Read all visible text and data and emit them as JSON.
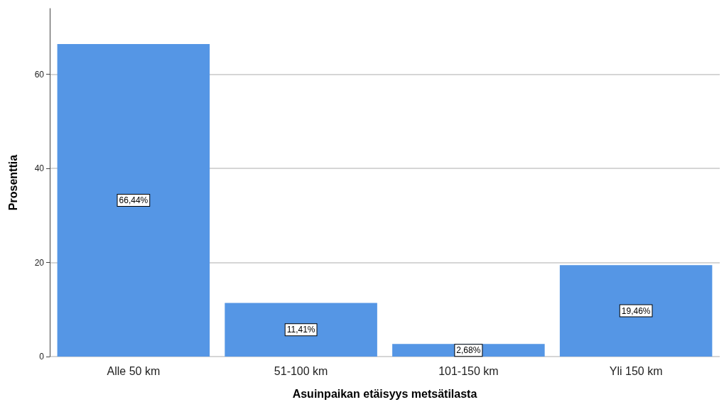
{
  "chart_data": {
    "type": "bar",
    "xlabel": "Asuinpaikan etäisyys metsätilasta",
    "ylabel": "Prosenttia",
    "categories": [
      "Alle 50 km",
      "51-100 km",
      "101-150 km",
      "Yli 150 km"
    ],
    "values": [
      66.44,
      11.41,
      2.68,
      19.46
    ],
    "value_labels": [
      "66,44%",
      "11,41%",
      "2,68%",
      "19,46%"
    ],
    "color": "#5596e5",
    "ylim": [
      0,
      74
    ],
    "yticks": [
      0,
      20,
      40,
      60
    ],
    "grid": "y"
  }
}
